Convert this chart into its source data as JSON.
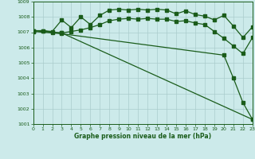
{
  "title": "Graphe pression niveau de la mer (hPa)",
  "bg_color": "#cceaea",
  "grid_color": "#aacccc",
  "line_color": "#1a5c1a",
  "xlim": [
    0,
    23
  ],
  "ylim": [
    1001,
    1009
  ],
  "yticks": [
    1001,
    1002,
    1003,
    1004,
    1005,
    1006,
    1007,
    1008,
    1009
  ],
  "xticks": [
    0,
    1,
    2,
    3,
    4,
    5,
    6,
    7,
    8,
    9,
    10,
    11,
    12,
    13,
    14,
    15,
    16,
    17,
    18,
    19,
    20,
    21,
    22,
    23
  ],
  "series_zigzag": {
    "x": [
      0,
      1,
      2,
      3,
      4,
      5,
      6,
      7,
      8,
      9,
      10,
      11,
      12,
      13,
      14,
      15,
      16,
      17,
      18,
      19,
      20,
      21,
      22,
      23
    ],
    "y": [
      1007.1,
      1007.1,
      1007.05,
      1007.8,
      1007.3,
      1008.0,
      1007.5,
      1008.1,
      1008.45,
      1008.5,
      1008.45,
      1008.5,
      1008.45,
      1008.5,
      1008.45,
      1008.2,
      1008.4,
      1008.15,
      1008.05,
      1007.8,
      1008.1,
      1007.4,
      1006.65,
      1007.35
    ]
  },
  "series_smooth": {
    "x": [
      0,
      1,
      2,
      3,
      4,
      5,
      6,
      7,
      8,
      9,
      10,
      11,
      12,
      13,
      14,
      15,
      16,
      17,
      18,
      19,
      20,
      21,
      22,
      23
    ],
    "y": [
      1007.1,
      1007.1,
      1007.0,
      1006.95,
      1007.05,
      1007.15,
      1007.3,
      1007.5,
      1007.75,
      1007.85,
      1007.9,
      1007.85,
      1007.9,
      1007.85,
      1007.85,
      1007.7,
      1007.75,
      1007.6,
      1007.5,
      1007.05,
      1006.6,
      1006.1,
      1005.6,
      1006.65
    ]
  },
  "series_diag1": {
    "x": [
      0,
      3,
      23
    ],
    "y": [
      1007.1,
      1006.95,
      1001.3
    ]
  },
  "series_diag2": {
    "x": [
      0,
      3,
      20,
      21,
      22,
      23
    ],
    "y": [
      1007.05,
      1006.9,
      1005.5,
      1004.0,
      1002.4,
      1001.3
    ]
  }
}
